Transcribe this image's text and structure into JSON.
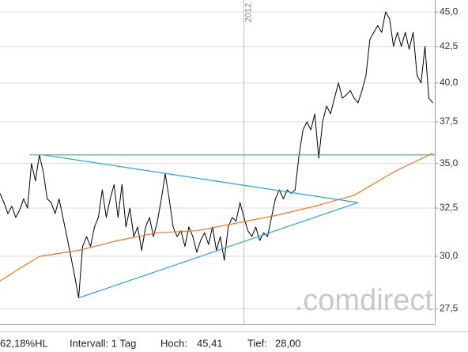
{
  "chart_data": {
    "type": "line",
    "yscale": "log",
    "ylim": [
      26.8,
      45.9
    ],
    "yticks": [
      {
        "value": 27.5,
        "label": "27,5"
      },
      {
        "value": 30,
        "label": "30,0"
      },
      {
        "value": 32.5,
        "label": "32,5"
      },
      {
        "value": 35,
        "label": "35,0"
      },
      {
        "value": 37.5,
        "label": "37,5"
      },
      {
        "value": 40,
        "label": "40,0"
      },
      {
        "value": 42.5,
        "label": "42,5"
      },
      {
        "value": 45,
        "label": "45,0"
      }
    ],
    "xlim": [
      0,
      110.5
    ],
    "grid": true,
    "x_markers": [
      {
        "x": 62,
        "label": "2012"
      }
    ],
    "series": [
      {
        "color": "#000000",
        "width": 1,
        "x": [
          0,
          1,
          2,
          3,
          4,
          5,
          6,
          7,
          8,
          9,
          10,
          11,
          12,
          13,
          14,
          15,
          16,
          17,
          18,
          19,
          20,
          21,
          22,
          23,
          24,
          25,
          26,
          27,
          28,
          29,
          30,
          31,
          32,
          33,
          34,
          35,
          36,
          37,
          38,
          39,
          40,
          41,
          42,
          43,
          44,
          45,
          46,
          47,
          48,
          49,
          50,
          51,
          52,
          53,
          54,
          55,
          56,
          57,
          58,
          59,
          60,
          61,
          62,
          63,
          64,
          65,
          66,
          67,
          68,
          69,
          70,
          71,
          72,
          73,
          74,
          75,
          76,
          77,
          78,
          79,
          80,
          81,
          82,
          83,
          84,
          85,
          86,
          87,
          88,
          89,
          90,
          91,
          92,
          93,
          94,
          95,
          96,
          97,
          98,
          99,
          100,
          101,
          102,
          103,
          104,
          105,
          106,
          107,
          108,
          109,
          110
        ],
        "values": [
          33.3,
          32.8,
          32.2,
          32.6,
          32.0,
          32.4,
          33.0,
          32.5,
          35.0,
          34.0,
          35.5,
          34.5,
          33.0,
          32.8,
          32.2,
          33.0,
          32.0,
          31.0,
          30.0,
          29.0,
          28.0,
          30.5,
          31.0,
          30.5,
          31.5,
          32.0,
          33.5,
          32.0,
          33.0,
          33.8,
          32.0,
          33.8,
          31.5,
          32.5,
          31.0,
          31.5,
          30.3,
          31.5,
          32.0,
          31.0,
          31.8,
          33.0,
          34.4,
          33.0,
          31.5,
          31.0,
          31.3,
          30.5,
          31.5,
          31.0,
          30.2,
          30.8,
          31.2,
          30.6,
          31.5,
          30.3,
          31.0,
          29.8,
          31.5,
          32.0,
          31.8,
          32.8,
          32.0,
          31.3,
          31.0,
          31.5,
          30.8,
          31.2,
          31.0,
          32.0,
          33.0,
          33.5,
          33.0,
          33.5,
          33.3,
          33.5,
          35.5,
          37.0,
          37.5,
          37.0,
          38.0,
          35.3,
          37.5,
          38.5,
          38.0,
          39.0,
          40.0,
          39.0,
          39.2,
          39.5,
          39.0,
          38.7,
          39.5,
          40.5,
          43.0,
          43.5,
          44.0,
          43.5,
          45.0,
          44.5,
          42.5,
          43.5,
          42.5,
          43.5,
          42.3,
          43.5,
          40.5,
          40.0,
          42.5,
          39.0,
          38.7
        ]
      },
      {
        "color": "#f07820",
        "width": 1.2,
        "x": [
          0,
          5,
          10,
          20,
          30,
          40,
          50,
          60,
          70,
          80,
          90,
          100,
          110
        ],
        "values": [
          28.8,
          29.4,
          30.0,
          30.3,
          30.8,
          31.2,
          31.3,
          31.7,
          32.1,
          32.6,
          33.2,
          34.5,
          35.6
        ]
      },
      {
        "color": "#2aa5d8",
        "width": 1.2,
        "x": [
          11,
          91
        ],
        "values": [
          35.5,
          32.8
        ]
      },
      {
        "color": "#2aa5d8",
        "width": 1.2,
        "x": [
          20,
          91
        ],
        "values": [
          28.0,
          32.8
        ]
      },
      {
        "color": "#3cb371",
        "width": 1.2,
        "x": [
          7.5,
          110.5
        ],
        "values": [
          35.5,
          35.5
        ]
      }
    ],
    "watermark": ".comdirect",
    "footer": [
      "62,18%HL",
      "Intervall: 1 Tag",
      "Hoch:",
      "45,41",
      "Tief:",
      "28,00"
    ]
  }
}
